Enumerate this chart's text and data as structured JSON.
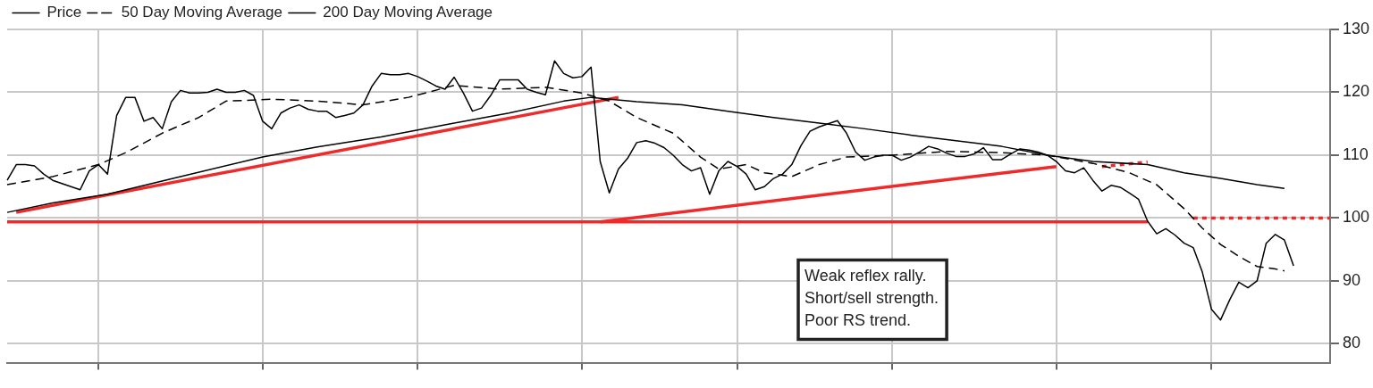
{
  "chart_data": {
    "type": "line",
    "legend": "top left",
    "grid": true,
    "marker": "none",
    "ylim": [
      77,
      130
    ],
    "categories": [
      null,
      null,
      null,
      null,
      null,
      null,
      null,
      null,
      null,
      null,
      null,
      null,
      null,
      null,
      null,
      null,
      null,
      null,
      null,
      null,
      null,
      null,
      null,
      null,
      null,
      null,
      null,
      null,
      null,
      null,
      null,
      null,
      null,
      null,
      null,
      null,
      null,
      null,
      null,
      null,
      null,
      null,
      null,
      null,
      null,
      null,
      null,
      null,
      null,
      null,
      null,
      null,
      null,
      null,
      null,
      null,
      null,
      null,
      null,
      null,
      null,
      null,
      null,
      null,
      null,
      null,
      null,
      null,
      null,
      null,
      null,
      null,
      null,
      null,
      null,
      null,
      null,
      null,
      null,
      null,
      null,
      null,
      null,
      null,
      null,
      null,
      null,
      null,
      null,
      null,
      null,
      null,
      null,
      null,
      null,
      null,
      null,
      null,
      null,
      null,
      null,
      null,
      null,
      null,
      null,
      null,
      null,
      null,
      null,
      null,
      null,
      null,
      null,
      null,
      null,
      null,
      null,
      null,
      null,
      null,
      null,
      null,
      null,
      null,
      null,
      null,
      null,
      null,
      null,
      null,
      null,
      null,
      null,
      null,
      null,
      null,
      null,
      null,
      null,
      null,
      null,
      null,
      null,
      null,
      null,
      null
    ],
    "yticks": [
      80,
      90,
      100,
      110,
      120,
      130
    ],
    "annotations": [
      "Weak reflex rally.\nShort/sell strength.\nPoor RS trend."
    ],
    "series": [
      {
        "name": "Price",
        "color": "#000000",
        "line_style": "solid",
        "values": [
          106,
          108.5,
          108.5,
          108.3,
          107,
          106,
          105.5,
          105,
          104.5,
          107.5,
          108.5,
          107,
          116.3,
          119.2,
          119.2,
          115.4,
          116,
          114.2,
          118.5,
          120.3,
          119.9,
          119.9,
          120,
          120.5,
          120,
          120,
          120.3,
          119.5,
          115.4,
          114.2,
          116.7,
          117.5,
          118,
          117.3,
          117,
          117,
          116,
          116.3,
          116.7,
          118,
          121,
          123,
          122.8,
          122.8,
          123,
          122.5,
          121.8,
          121,
          120.5,
          122.4,
          119.9,
          117,
          117.5,
          119.5,
          122,
          122,
          122,
          120.5,
          120,
          119.6,
          125,
          123,
          122.3,
          122.5,
          124,
          109,
          104,
          107.8,
          109.5,
          112,
          112.3,
          111.9,
          111.2,
          110,
          108.5,
          107.5,
          108,
          103.8,
          107.5,
          109,
          108.2,
          107,
          104.5,
          105,
          106.3,
          107,
          108.5,
          111.5,
          113.8,
          114.5,
          115,
          115.5,
          113.5,
          110.5,
          109.2,
          109.7,
          110,
          110,
          109.2,
          109.7,
          110.5,
          111.4,
          111,
          110.3,
          109.8,
          109.8,
          110.2,
          111.2,
          109.3,
          109.3,
          110.2,
          111,
          110.8,
          110.5,
          110,
          109,
          107.5,
          107.2,
          108,
          106,
          104.3,
          105.2,
          104.9,
          104,
          103,
          99.5,
          97.5,
          98.3,
          97.3,
          96,
          95.3,
          91.4,
          85.5,
          83.8,
          87,
          89.8,
          88.9,
          90,
          96,
          97.4,
          96.5,
          92.4,
          null,
          null,
          null,
          null
        ]
      },
      {
        "name": "50 Day Moving Average",
        "color": "#000000",
        "line_style": "dashed",
        "values": [
          105.3,
          null,
          null,
          null,
          null,
          106.6,
          null,
          null,
          null,
          null,
          108.5,
          null,
          null,
          110.4,
          null,
          null,
          null,
          113.5,
          null,
          null,
          null,
          116,
          null,
          null,
          118.6,
          null,
          null,
          null,
          null,
          118.9,
          null,
          null,
          null,
          null,
          118.6,
          null,
          null,
          null,
          null,
          118,
          null,
          null,
          null,
          null,
          119.2,
          null,
          null,
          null,
          null,
          121.1,
          null,
          null,
          null,
          null,
          120.5,
          null,
          null,
          null,
          null,
          120.8,
          null,
          null,
          null,
          119.9,
          null,
          null,
          118.6,
          null,
          null,
          116,
          null,
          null,
          null,
          113.5,
          null,
          null,
          109.7,
          null,
          107.8,
          null,
          null,
          108.5,
          null,
          107.2,
          null,
          null,
          106.6,
          null,
          null,
          108.5,
          null,
          null,
          109.7,
          null,
          null,
          null,
          null,
          110,
          null,
          null,
          null,
          null,
          null,
          110.6,
          null,
          null,
          null,
          null,
          null,
          110.4,
          null,
          null,
          null,
          null,
          110,
          null,
          null,
          null,
          null,
          108.7,
          null,
          null,
          null,
          107.2,
          null,
          null,
          105.3,
          null,
          null,
          101.5,
          null,
          98.4,
          null,
          95.8,
          null,
          93.9,
          null,
          92.3,
          null,
          91.9,
          91.6,
          null,
          null,
          null,
          null,
          null
        ]
      },
      {
        "name": "200 Day Moving Average",
        "color": "#000000",
        "line_style": "solid",
        "values": [
          100.9,
          null,
          null,
          null,
          null,
          102.4,
          null,
          null,
          null,
          null,
          null,
          103.8,
          null,
          null,
          null,
          null,
          null,
          null,
          null,
          106.6,
          null,
          null,
          null,
          null,
          null,
          null,
          null,
          null,
          109.7,
          null,
          null,
          null,
          null,
          null,
          111.3,
          null,
          null,
          null,
          null,
          null,
          null,
          112.9,
          null,
          null,
          null,
          null,
          null,
          null,
          null,
          115.1,
          null,
          null,
          null,
          null,
          null,
          116.7,
          null,
          null,
          null,
          null,
          null,
          118.6,
          null,
          null,
          119.2,
          null,
          null,
          null,
          null,
          118.5,
          null,
          null,
          null,
          null,
          118,
          null,
          null,
          null,
          null,
          117,
          null,
          null,
          null,
          null,
          116,
          null,
          null,
          null,
          null,
          115.1,
          null,
          null,
          null,
          null,
          114.2,
          null,
          null,
          null,
          null,
          113.2,
          null,
          null,
          null,
          null,
          112.3,
          null,
          null,
          null,
          null,
          111.4,
          null,
          null,
          null,
          null,
          110,
          null,
          null,
          null,
          null,
          109,
          null,
          null,
          null,
          null,
          null,
          108.5,
          null,
          null,
          null,
          107.2,
          null,
          null,
          null,
          106.3,
          null,
          null,
          null,
          105.3,
          null,
          null,
          104.7,
          null,
          null,
          null,
          null,
          null
        ]
      },
      {
        "color": "#ee2a2a",
        "line_style": "solid",
        "values": [
          null,
          100.9,
          null,
          null,
          null,
          null,
          null,
          null,
          null,
          null,
          null,
          null,
          null,
          null,
          null,
          null,
          null,
          null,
          null,
          null,
          null,
          null,
          null,
          null,
          null,
          null,
          null,
          null,
          null,
          null,
          null,
          null,
          null,
          null,
          null,
          null,
          null,
          null,
          null,
          null,
          null,
          null,
          null,
          null,
          null,
          null,
          null,
          null,
          null,
          null,
          null,
          null,
          null,
          null,
          null,
          null,
          null,
          null,
          null,
          null,
          null,
          null,
          null,
          null,
          null,
          null,
          null,
          119.2,
          null,
          null,
          null,
          null,
          null,
          null,
          null,
          null,
          null,
          null,
          null,
          null,
          null,
          null,
          null,
          null,
          null,
          null,
          null,
          null,
          null,
          null,
          null,
          null,
          null,
          null,
          null,
          null,
          null,
          null,
          null,
          null,
          null,
          null,
          null,
          null,
          null,
          null,
          null,
          null,
          null,
          null,
          null,
          null,
          null,
          null,
          null,
          null,
          null,
          null,
          null,
          null,
          null,
          null,
          null,
          null,
          null,
          null,
          null,
          null,
          null,
          null,
          null,
          null,
          null,
          null,
          null,
          null,
          null,
          null,
          null,
          null,
          null,
          null,
          null,
          null,
          null,
          null
        ]
      },
      {
        "color": "#ee2a2a",
        "line_style": "solid",
        "values": [
          null,
          null,
          null,
          null,
          null,
          null,
          null,
          null,
          null,
          null,
          null,
          null,
          null,
          null,
          null,
          null,
          null,
          null,
          null,
          null,
          null,
          null,
          null,
          null,
          null,
          null,
          null,
          null,
          null,
          null,
          null,
          null,
          null,
          null,
          null,
          null,
          null,
          null,
          null,
          null,
          null,
          null,
          null,
          null,
          null,
          null,
          null,
          null,
          null,
          null,
          null,
          null,
          null,
          null,
          null,
          null,
          null,
          null,
          null,
          null,
          null,
          null,
          null,
          null,
          null,
          99.4,
          null,
          null,
          null,
          null,
          null,
          null,
          null,
          null,
          null,
          null,
          null,
          null,
          null,
          null,
          null,
          null,
          null,
          null,
          null,
          null,
          null,
          null,
          null,
          null,
          null,
          null,
          null,
          null,
          null,
          null,
          null,
          null,
          null,
          null,
          null,
          null,
          null,
          null,
          null,
          null,
          null,
          null,
          null,
          null,
          null,
          null,
          null,
          null,
          null,
          108.2,
          null,
          null,
          null,
          null,
          null,
          null,
          null,
          null,
          null,
          null,
          null,
          null,
          null,
          null,
          null,
          null,
          null,
          null,
          null,
          null,
          null,
          null,
          null,
          null,
          null,
          null,
          null,
          null,
          null,
          null
        ]
      },
      {
        "color": "#ee2a2a",
        "line_style": "solid",
        "values": [
          99.4,
          null,
          null,
          null,
          null,
          null,
          null,
          null,
          null,
          null,
          null,
          null,
          null,
          null,
          null,
          null,
          null,
          null,
          null,
          null,
          null,
          null,
          null,
          null,
          null,
          null,
          null,
          null,
          null,
          null,
          null,
          null,
          null,
          null,
          null,
          null,
          null,
          null,
          null,
          null,
          null,
          null,
          null,
          null,
          null,
          null,
          null,
          null,
          null,
          null,
          null,
          null,
          null,
          null,
          null,
          null,
          null,
          null,
          null,
          null,
          null,
          null,
          null,
          null,
          null,
          null,
          null,
          null,
          null,
          null,
          null,
          null,
          null,
          null,
          null,
          null,
          null,
          null,
          null,
          null,
          null,
          null,
          null,
          null,
          null,
          null,
          null,
          null,
          null,
          null,
          null,
          null,
          null,
          null,
          null,
          null,
          null,
          null,
          null,
          null,
          null,
          null,
          null,
          null,
          null,
          null,
          null,
          null,
          null,
          null,
          null,
          null,
          null,
          null,
          null,
          null,
          null,
          null,
          null,
          null,
          null,
          null,
          null,
          null,
          null,
          99.4,
          null,
          null,
          null,
          null,
          null,
          null,
          null,
          null,
          null,
          null,
          null,
          null,
          null,
          null,
          null,
          null,
          null,
          null,
          null,
          null
        ]
      },
      {
        "color": "#ee2a2a",
        "line_style": "dotted",
        "values": [
          null,
          null,
          null,
          null,
          null,
          null,
          null,
          null,
          null,
          null,
          null,
          null,
          null,
          null,
          null,
          null,
          null,
          null,
          null,
          null,
          null,
          null,
          null,
          null,
          null,
          null,
          null,
          null,
          null,
          null,
          null,
          null,
          null,
          null,
          null,
          null,
          null,
          null,
          null,
          null,
          null,
          null,
          null,
          null,
          null,
          null,
          null,
          null,
          null,
          null,
          null,
          null,
          null,
          null,
          null,
          null,
          null,
          null,
          null,
          null,
          null,
          null,
          null,
          null,
          null,
          null,
          null,
          null,
          null,
          null,
          null,
          null,
          null,
          null,
          null,
          null,
          null,
          null,
          null,
          null,
          null,
          null,
          null,
          null,
          null,
          null,
          null,
          null,
          null,
          null,
          null,
          null,
          null,
          null,
          null,
          null,
          null,
          null,
          null,
          null,
          null,
          null,
          null,
          null,
          null,
          null,
          null,
          null,
          null,
          null,
          null,
          null,
          null,
          null,
          null,
          null,
          null,
          null,
          null,
          null,
          108.2,
          null,
          null,
          null,
          null,
          108.9,
          null,
          null,
          null,
          null,
          null,
          null,
          null,
          null,
          null,
          null,
          null,
          null,
          null,
          null,
          null,
          null,
          null,
          null,
          null,
          null
        ]
      },
      {
        "color": "#ee2a2a",
        "line_style": "dotted",
        "values": [
          null,
          null,
          null,
          null,
          null,
          null,
          null,
          null,
          null,
          null,
          null,
          null,
          null,
          null,
          null,
          null,
          null,
          null,
          null,
          null,
          null,
          null,
          null,
          null,
          null,
          null,
          null,
          null,
          null,
          null,
          null,
          null,
          null,
          null,
          null,
          null,
          null,
          null,
          null,
          null,
          null,
          null,
          null,
          null,
          null,
          null,
          null,
          null,
          null,
          null,
          null,
          null,
          null,
          null,
          null,
          null,
          null,
          null,
          null,
          null,
          null,
          null,
          null,
          null,
          null,
          null,
          null,
          null,
          null,
          null,
          null,
          null,
          null,
          null,
          null,
          null,
          null,
          null,
          null,
          null,
          null,
          null,
          null,
          null,
          null,
          null,
          null,
          null,
          null,
          null,
          null,
          null,
          null,
          null,
          null,
          null,
          null,
          null,
          null,
          null,
          null,
          null,
          null,
          null,
          null,
          null,
          null,
          null,
          null,
          null,
          null,
          null,
          null,
          null,
          null,
          null,
          null,
          null,
          null,
          null,
          null,
          null,
          null,
          null,
          null,
          null,
          null,
          null,
          null,
          null,
          100,
          null,
          null,
          null,
          null,
          null,
          null,
          null,
          null,
          null,
          null,
          null,
          null,
          null,
          null,
          100
        ]
      }
    ]
  }
}
